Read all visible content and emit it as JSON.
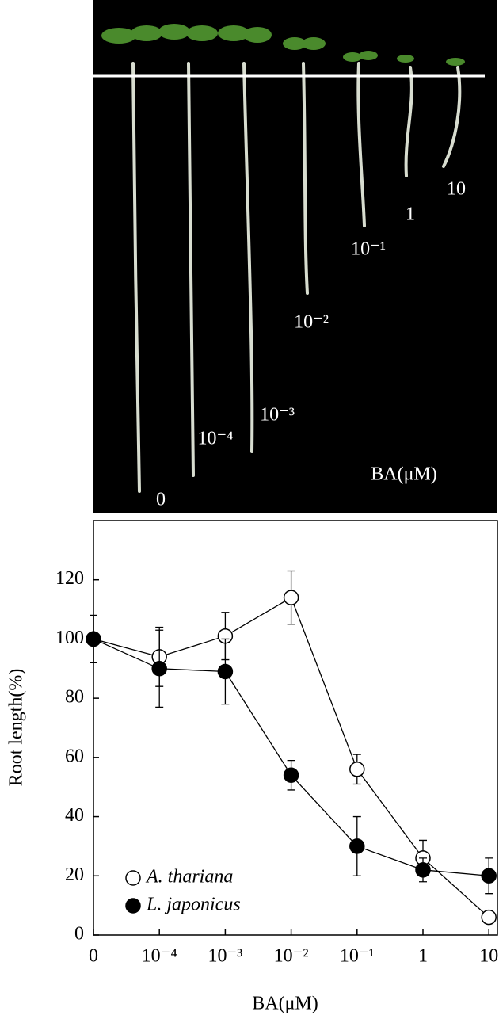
{
  "photo": {
    "labels": [
      "0",
      "10⁻⁴",
      "10⁻³",
      "10⁻²",
      "10⁻¹",
      "1",
      "10"
    ],
    "unit": "BA(μM)"
  },
  "chart_data": {
    "type": "line",
    "categories": [
      "0",
      "10⁻⁴",
      "10⁻³",
      "10⁻²",
      "10⁻¹",
      "1",
      "10"
    ],
    "x_label": "BA(μM)",
    "y_label": "Root length(%)",
    "ylim": [
      0,
      140
    ],
    "yticks": [
      0,
      20,
      40,
      60,
      80,
      100,
      120
    ],
    "series": [
      {
        "name": "A. thariana",
        "color": "#ffffff",
        "values": [
          100,
          94,
          101,
          114,
          56,
          26,
          6
        ],
        "errors": [
          8,
          10,
          8,
          9,
          5,
          6,
          0
        ]
      },
      {
        "name": "L. japonicus",
        "color": "#000000",
        "values": [
          100,
          90,
          89,
          54,
          30,
          22,
          20
        ],
        "errors": [
          8,
          13,
          11,
          5,
          10,
          4,
          6
        ]
      }
    ]
  }
}
